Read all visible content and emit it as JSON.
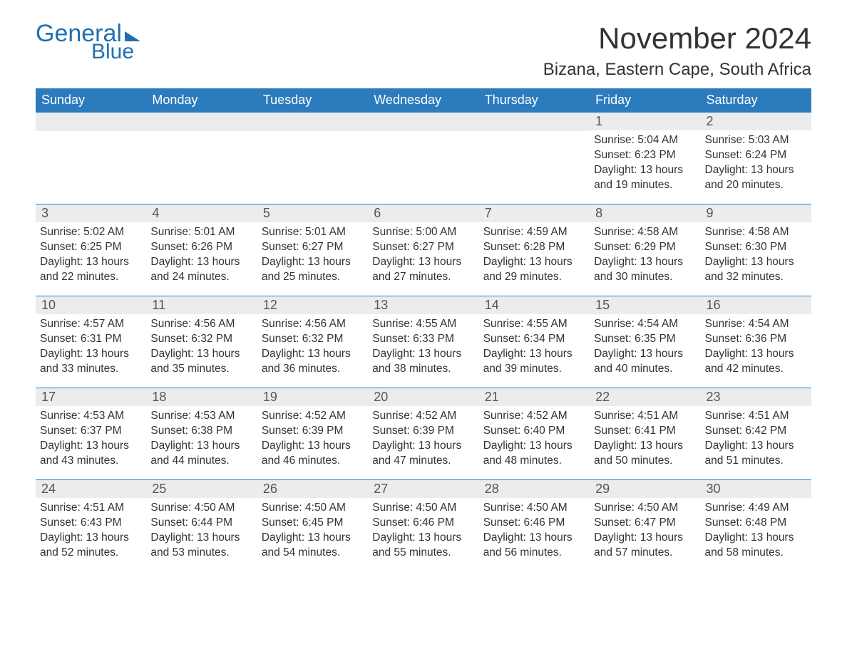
{
  "brand": {
    "name1": "General",
    "name2": "Blue",
    "color": "#1f6fb2"
  },
  "title": "November 2024",
  "location": "Bizana, Eastern Cape, South Africa",
  "style": {
    "header_bg": "#2b7bbd",
    "header_fg": "#ffffff",
    "daynum_bg": "#ececec",
    "row_divider": "#2b7bbd",
    "text_color": "#333333",
    "body_fontsize": 15.5,
    "title_fontsize": 42,
    "location_fontsize": 24,
    "head_fontsize": 18
  },
  "weekdays": [
    "Sunday",
    "Monday",
    "Tuesday",
    "Wednesday",
    "Thursday",
    "Friday",
    "Saturday"
  ],
  "weeks": [
    [
      null,
      null,
      null,
      null,
      null,
      {
        "day": "1",
        "sunrise": "Sunrise: 5:04 AM",
        "sunset": "Sunset: 6:23 PM",
        "daylight": "Daylight: 13 hours and 19 minutes."
      },
      {
        "day": "2",
        "sunrise": "Sunrise: 5:03 AM",
        "sunset": "Sunset: 6:24 PM",
        "daylight": "Daylight: 13 hours and 20 minutes."
      }
    ],
    [
      {
        "day": "3",
        "sunrise": "Sunrise: 5:02 AM",
        "sunset": "Sunset: 6:25 PM",
        "daylight": "Daylight: 13 hours and 22 minutes."
      },
      {
        "day": "4",
        "sunrise": "Sunrise: 5:01 AM",
        "sunset": "Sunset: 6:26 PM",
        "daylight": "Daylight: 13 hours and 24 minutes."
      },
      {
        "day": "5",
        "sunrise": "Sunrise: 5:01 AM",
        "sunset": "Sunset: 6:27 PM",
        "daylight": "Daylight: 13 hours and 25 minutes."
      },
      {
        "day": "6",
        "sunrise": "Sunrise: 5:00 AM",
        "sunset": "Sunset: 6:27 PM",
        "daylight": "Daylight: 13 hours and 27 minutes."
      },
      {
        "day": "7",
        "sunrise": "Sunrise: 4:59 AM",
        "sunset": "Sunset: 6:28 PM",
        "daylight": "Daylight: 13 hours and 29 minutes."
      },
      {
        "day": "8",
        "sunrise": "Sunrise: 4:58 AM",
        "sunset": "Sunset: 6:29 PM",
        "daylight": "Daylight: 13 hours and 30 minutes."
      },
      {
        "day": "9",
        "sunrise": "Sunrise: 4:58 AM",
        "sunset": "Sunset: 6:30 PM",
        "daylight": "Daylight: 13 hours and 32 minutes."
      }
    ],
    [
      {
        "day": "10",
        "sunrise": "Sunrise: 4:57 AM",
        "sunset": "Sunset: 6:31 PM",
        "daylight": "Daylight: 13 hours and 33 minutes."
      },
      {
        "day": "11",
        "sunrise": "Sunrise: 4:56 AM",
        "sunset": "Sunset: 6:32 PM",
        "daylight": "Daylight: 13 hours and 35 minutes."
      },
      {
        "day": "12",
        "sunrise": "Sunrise: 4:56 AM",
        "sunset": "Sunset: 6:32 PM",
        "daylight": "Daylight: 13 hours and 36 minutes."
      },
      {
        "day": "13",
        "sunrise": "Sunrise: 4:55 AM",
        "sunset": "Sunset: 6:33 PM",
        "daylight": "Daylight: 13 hours and 38 minutes."
      },
      {
        "day": "14",
        "sunrise": "Sunrise: 4:55 AM",
        "sunset": "Sunset: 6:34 PM",
        "daylight": "Daylight: 13 hours and 39 minutes."
      },
      {
        "day": "15",
        "sunrise": "Sunrise: 4:54 AM",
        "sunset": "Sunset: 6:35 PM",
        "daylight": "Daylight: 13 hours and 40 minutes."
      },
      {
        "day": "16",
        "sunrise": "Sunrise: 4:54 AM",
        "sunset": "Sunset: 6:36 PM",
        "daylight": "Daylight: 13 hours and 42 minutes."
      }
    ],
    [
      {
        "day": "17",
        "sunrise": "Sunrise: 4:53 AM",
        "sunset": "Sunset: 6:37 PM",
        "daylight": "Daylight: 13 hours and 43 minutes."
      },
      {
        "day": "18",
        "sunrise": "Sunrise: 4:53 AM",
        "sunset": "Sunset: 6:38 PM",
        "daylight": "Daylight: 13 hours and 44 minutes."
      },
      {
        "day": "19",
        "sunrise": "Sunrise: 4:52 AM",
        "sunset": "Sunset: 6:39 PM",
        "daylight": "Daylight: 13 hours and 46 minutes."
      },
      {
        "day": "20",
        "sunrise": "Sunrise: 4:52 AM",
        "sunset": "Sunset: 6:39 PM",
        "daylight": "Daylight: 13 hours and 47 minutes."
      },
      {
        "day": "21",
        "sunrise": "Sunrise: 4:52 AM",
        "sunset": "Sunset: 6:40 PM",
        "daylight": "Daylight: 13 hours and 48 minutes."
      },
      {
        "day": "22",
        "sunrise": "Sunrise: 4:51 AM",
        "sunset": "Sunset: 6:41 PM",
        "daylight": "Daylight: 13 hours and 50 minutes."
      },
      {
        "day": "23",
        "sunrise": "Sunrise: 4:51 AM",
        "sunset": "Sunset: 6:42 PM",
        "daylight": "Daylight: 13 hours and 51 minutes."
      }
    ],
    [
      {
        "day": "24",
        "sunrise": "Sunrise: 4:51 AM",
        "sunset": "Sunset: 6:43 PM",
        "daylight": "Daylight: 13 hours and 52 minutes."
      },
      {
        "day": "25",
        "sunrise": "Sunrise: 4:50 AM",
        "sunset": "Sunset: 6:44 PM",
        "daylight": "Daylight: 13 hours and 53 minutes."
      },
      {
        "day": "26",
        "sunrise": "Sunrise: 4:50 AM",
        "sunset": "Sunset: 6:45 PM",
        "daylight": "Daylight: 13 hours and 54 minutes."
      },
      {
        "day": "27",
        "sunrise": "Sunrise: 4:50 AM",
        "sunset": "Sunset: 6:46 PM",
        "daylight": "Daylight: 13 hours and 55 minutes."
      },
      {
        "day": "28",
        "sunrise": "Sunrise: 4:50 AM",
        "sunset": "Sunset: 6:46 PM",
        "daylight": "Daylight: 13 hours and 56 minutes."
      },
      {
        "day": "29",
        "sunrise": "Sunrise: 4:50 AM",
        "sunset": "Sunset: 6:47 PM",
        "daylight": "Daylight: 13 hours and 57 minutes."
      },
      {
        "day": "30",
        "sunrise": "Sunrise: 4:49 AM",
        "sunset": "Sunset: 6:48 PM",
        "daylight": "Daylight: 13 hours and 58 minutes."
      }
    ]
  ]
}
